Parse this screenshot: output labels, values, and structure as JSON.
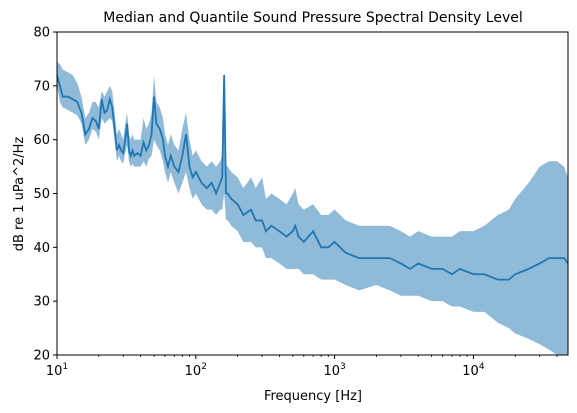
{
  "chart_data": {
    "type": "line",
    "title": "Median and Quantile Sound Pressure Spectral Density Level",
    "xlabel": "Frequency [Hz]",
    "ylabel": "dB re 1 uPa^2/Hz",
    "xscale": "log",
    "xlim": [
      10,
      48000
    ],
    "ylim": [
      20,
      80
    ],
    "grid": false,
    "legend": "none",
    "x_ticks": [
      {
        "value": 10,
        "base": "10",
        "exp": "1"
      },
      {
        "value": 100,
        "base": "10",
        "exp": "2"
      },
      {
        "value": 1000,
        "base": "10",
        "exp": "3"
      },
      {
        "value": 10000,
        "base": "10",
        "exp": "4"
      }
    ],
    "y_ticks": [
      {
        "value": 20,
        "label": "20"
      },
      {
        "value": 30,
        "label": "30"
      },
      {
        "value": 40,
        "label": "40"
      },
      {
        "value": 50,
        "label": "50"
      },
      {
        "value": 60,
        "label": "60"
      },
      {
        "value": 70,
        "label": "70"
      },
      {
        "value": 80,
        "label": "80"
      }
    ],
    "colors": {
      "median": "#1f77b4",
      "band": "#1f77b4"
    },
    "series": [
      {
        "role": "median",
        "x": [
          10,
          10.5,
          11,
          12,
          13,
          14,
          15,
          16,
          17,
          18,
          19,
          20,
          21,
          22,
          23,
          24,
          25,
          26,
          27,
          28,
          29,
          30,
          31,
          32,
          33,
          34,
          35,
          36,
          38,
          40,
          42,
          44,
          46,
          48,
          50,
          52,
          55,
          58,
          60,
          63,
          66,
          70,
          75,
          80,
          85,
          90,
          95,
          100,
          110,
          120,
          130,
          140,
          150,
          155,
          160,
          165,
          170,
          180,
          200,
          220,
          250,
          270,
          300,
          320,
          350,
          400,
          450,
          500,
          520,
          550,
          600,
          700,
          800,
          900,
          1000,
          1200,
          1500,
          2000,
          2500,
          3000,
          3500,
          4000,
          5000,
          6000,
          7000,
          8000,
          10000,
          12000,
          15000,
          18000,
          20000,
          25000,
          30000,
          35000,
          40000,
          45000,
          48000
        ],
        "y": [
          72,
          70,
          68,
          68,
          67.5,
          67,
          65,
          61,
          62,
          64,
          63.5,
          62,
          67.5,
          65,
          65.5,
          67.5,
          66,
          62,
          58,
          59,
          58,
          57.5,
          60,
          63,
          58,
          57,
          58,
          57,
          57.5,
          57,
          59.5,
          58,
          59,
          61,
          68,
          63,
          62,
          60,
          57,
          55,
          57,
          55,
          54,
          57,
          61,
          55,
          53,
          54,
          52,
          51,
          52,
          50,
          52,
          53,
          72,
          50,
          50,
          49,
          48,
          46,
          47,
          45,
          45,
          43,
          44,
          43,
          42,
          43,
          44,
          42,
          41,
          43,
          40,
          40,
          41,
          39,
          38,
          38,
          38,
          37,
          36,
          37,
          36,
          36,
          35,
          36,
          35,
          35,
          34,
          34,
          35,
          36,
          37,
          38,
          38,
          38,
          37
        ],
        "q_low": [
          70,
          67,
          66,
          65.5,
          65,
          64.5,
          63,
          59,
          60,
          62,
          61.5,
          60,
          64,
          63,
          63.5,
          64,
          63.5,
          60,
          56,
          57,
          56,
          55.5,
          57.5,
          59,
          56,
          55,
          55.5,
          55,
          55,
          55,
          56,
          55,
          56.5,
          57,
          60,
          59,
          58,
          56,
          54,
          52,
          54,
          52,
          50,
          52,
          54,
          51,
          49,
          50,
          48,
          47,
          47,
          46,
          47,
          47,
          50,
          45,
          45,
          44,
          43,
          41,
          41,
          40,
          40,
          38,
          38,
          37,
          36,
          36,
          36,
          36,
          35,
          35,
          34,
          34,
          34,
          33,
          32,
          33,
          32,
          31,
          31,
          31,
          30,
          30,
          29,
          29,
          28,
          28,
          26,
          25,
          24,
          23,
          22,
          21,
          20,
          20,
          20
        ],
        "q_high": [
          74.5,
          74,
          73,
          72.5,
          72,
          70.5,
          68,
          64,
          65,
          67,
          67,
          66,
          69,
          68,
          69,
          70,
          69,
          65,
          61,
          62,
          61,
          60,
          63,
          65,
          61,
          60,
          61,
          60,
          60,
          60,
          64,
          62,
          63,
          65,
          72,
          67,
          66,
          64,
          61,
          59,
          61,
          59,
          58,
          62,
          65,
          60,
          57,
          58,
          56,
          55,
          56,
          55,
          56,
          57,
          72.5,
          55,
          55,
          54,
          53,
          51,
          53,
          51,
          53,
          49,
          50,
          49,
          48,
          50,
          51,
          48,
          47,
          48,
          46,
          46,
          47,
          45,
          44,
          44,
          44,
          43,
          42,
          43,
          42,
          42,
          42,
          43,
          43,
          44,
          46,
          47,
          49,
          52,
          55,
          56,
          56,
          55,
          53
        ]
      }
    ]
  }
}
